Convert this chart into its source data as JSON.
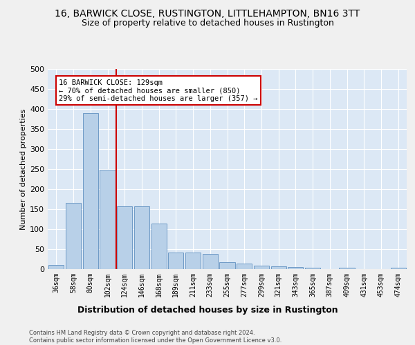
{
  "title1": "16, BARWICK CLOSE, RUSTINGTON, LITTLEHAMPTON, BN16 3TT",
  "title2": "Size of property relative to detached houses in Rustington",
  "xlabel": "Distribution of detached houses by size in Rustington",
  "ylabel": "Number of detached properties",
  "categories": [
    "36sqm",
    "58sqm",
    "80sqm",
    "102sqm",
    "124sqm",
    "146sqm",
    "168sqm",
    "189sqm",
    "211sqm",
    "233sqm",
    "255sqm",
    "277sqm",
    "299sqm",
    "321sqm",
    "343sqm",
    "365sqm",
    "387sqm",
    "409sqm",
    "431sqm",
    "453sqm",
    "474sqm"
  ],
  "values": [
    11,
    165,
    390,
    248,
    157,
    157,
    114,
    42,
    42,
    38,
    18,
    14,
    8,
    7,
    5,
    3,
    0,
    3,
    0,
    0,
    3
  ],
  "bar_color": "#b8d0e8",
  "bar_edge_color": "#6090c0",
  "vline_color": "#cc0000",
  "annotation_text": "16 BARWICK CLOSE: 129sqm\n← 70% of detached houses are smaller (850)\n29% of semi-detached houses are larger (357) →",
  "footer": "Contains HM Land Registry data © Crown copyright and database right 2024.\nContains public sector information licensed under the Open Government Licence v3.0.",
  "ylim": [
    0,
    500
  ],
  "yticks": [
    0,
    50,
    100,
    150,
    200,
    250,
    300,
    350,
    400,
    450,
    500
  ],
  "background_color": "#dce8f5",
  "grid_color": "#ffffff",
  "fig_background": "#f0f0f0",
  "title1_fontsize": 10,
  "title2_fontsize": 9,
  "xlabel_fontsize": 9,
  "ylabel_fontsize": 8,
  "tick_fontsize": 7,
  "annotation_fontsize": 7.5,
  "footer_fontsize": 6.0
}
